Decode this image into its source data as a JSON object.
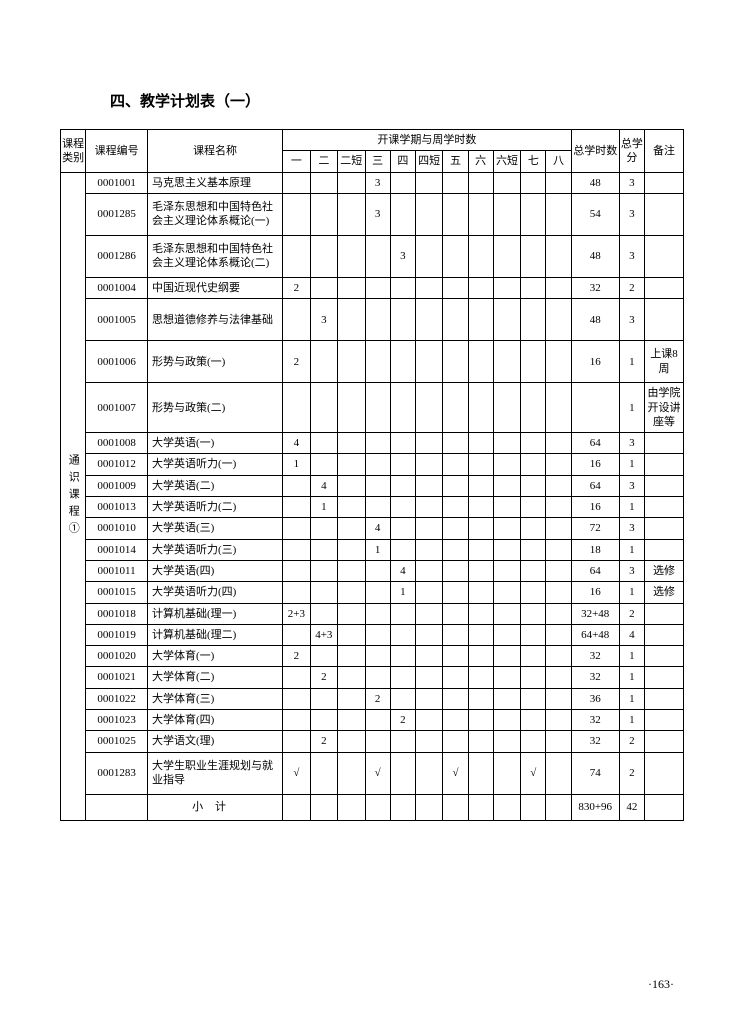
{
  "title": "四、教学计划表（一）",
  "page_number": "·163·",
  "headers": {
    "category": "课程类别",
    "code": "课程编号",
    "name": "课程名称",
    "semester_group": "开课学期与周学时数",
    "total_hours": "总学时数",
    "total_credits": "总学分",
    "remark": "备注",
    "sem1": "一",
    "sem2": "二",
    "sem2s": "二短",
    "sem3": "三",
    "sem4": "四",
    "sem4s": "四短",
    "sem5": "五",
    "sem6": "六",
    "sem6s": "六短",
    "sem7": "七",
    "sem8": "八"
  },
  "category_label": "通识课程①",
  "subtotal_label": "小计",
  "rows": [
    {
      "code": "0001001",
      "name": "马克思主义基本原理",
      "s": [
        "",
        "",
        "",
        "3",
        "",
        "",
        "",
        "",
        "",
        "",
        ""
      ],
      "hours": "48",
      "credits": "3",
      "remark": ""
    },
    {
      "code": "0001285",
      "name": "毛泽东思想和中国特色社会主义理论体系概论(一)",
      "s": [
        "",
        "",
        "",
        "3",
        "",
        "",
        "",
        "",
        "",
        "",
        ""
      ],
      "hours": "54",
      "credits": "3",
      "remark": ""
    },
    {
      "code": "0001286",
      "name": "毛泽东思想和中国特色社会主义理论体系概论(二)",
      "s": [
        "",
        "",
        "",
        "",
        "3",
        "",
        "",
        "",
        "",
        "",
        ""
      ],
      "hours": "48",
      "credits": "3",
      "remark": ""
    },
    {
      "code": "0001004",
      "name": "中国近现代史纲要",
      "s": [
        "2",
        "",
        "",
        "",
        "",
        "",
        "",
        "",
        "",
        "",
        ""
      ],
      "hours": "32",
      "credits": "2",
      "remark": ""
    },
    {
      "code": "0001005",
      "name": "思想道德修养与法律基础",
      "s": [
        "",
        "3",
        "",
        "",
        "",
        "",
        "",
        "",
        "",
        "",
        ""
      ],
      "hours": "48",
      "credits": "3",
      "remark": ""
    },
    {
      "code": "0001006",
      "name": "形势与政策(一)",
      "s": [
        "2",
        "",
        "",
        "",
        "",
        "",
        "",
        "",
        "",
        "",
        ""
      ],
      "hours": "16",
      "credits": "1",
      "remark": "上课8周"
    },
    {
      "code": "0001007",
      "name": "形势与政策(二)",
      "s": [
        "",
        "",
        "",
        "",
        "",
        "",
        "",
        "",
        "",
        "",
        ""
      ],
      "hours": "",
      "credits": "1",
      "remark": "由学院开设讲座等"
    },
    {
      "code": "0001008",
      "name": "大学英语(一)",
      "s": [
        "4",
        "",
        "",
        "",
        "",
        "",
        "",
        "",
        "",
        "",
        ""
      ],
      "hours": "64",
      "credits": "3",
      "remark": ""
    },
    {
      "code": "0001012",
      "name": "大学英语听力(一)",
      "s": [
        "1",
        "",
        "",
        "",
        "",
        "",
        "",
        "",
        "",
        "",
        ""
      ],
      "hours": "16",
      "credits": "1",
      "remark": ""
    },
    {
      "code": "0001009",
      "name": "大学英语(二)",
      "s": [
        "",
        "4",
        "",
        "",
        "",
        "",
        "",
        "",
        "",
        "",
        ""
      ],
      "hours": "64",
      "credits": "3",
      "remark": ""
    },
    {
      "code": "0001013",
      "name": "大学英语听力(二)",
      "s": [
        "",
        "1",
        "",
        "",
        "",
        "",
        "",
        "",
        "",
        "",
        ""
      ],
      "hours": "16",
      "credits": "1",
      "remark": ""
    },
    {
      "code": "0001010",
      "name": "大学英语(三)",
      "s": [
        "",
        "",
        "",
        "4",
        "",
        "",
        "",
        "",
        "",
        "",
        ""
      ],
      "hours": "72",
      "credits": "3",
      "remark": ""
    },
    {
      "code": "0001014",
      "name": "大学英语听力(三)",
      "s": [
        "",
        "",
        "",
        "1",
        "",
        "",
        "",
        "",
        "",
        "",
        ""
      ],
      "hours": "18",
      "credits": "1",
      "remark": ""
    },
    {
      "code": "0001011",
      "name": "大学英语(四)",
      "s": [
        "",
        "",
        "",
        "",
        "4",
        "",
        "",
        "",
        "",
        "",
        ""
      ],
      "hours": "64",
      "credits": "3",
      "remark": "选修"
    },
    {
      "code": "0001015",
      "name": "大学英语听力(四)",
      "s": [
        "",
        "",
        "",
        "",
        "1",
        "",
        "",
        "",
        "",
        "",
        ""
      ],
      "hours": "16",
      "credits": "1",
      "remark": "选修"
    },
    {
      "code": "0001018",
      "name": "计算机基础(理一)",
      "s": [
        "2+3",
        "",
        "",
        "",
        "",
        "",
        "",
        "",
        "",
        "",
        ""
      ],
      "hours": "32+48",
      "credits": "2",
      "remark": ""
    },
    {
      "code": "0001019",
      "name": "计算机基础(理二)",
      "s": [
        "",
        "4+3",
        "",
        "",
        "",
        "",
        "",
        "",
        "",
        "",
        ""
      ],
      "hours": "64+48",
      "credits": "4",
      "remark": ""
    },
    {
      "code": "0001020",
      "name": "大学体育(一)",
      "s": [
        "2",
        "",
        "",
        "",
        "",
        "",
        "",
        "",
        "",
        "",
        ""
      ],
      "hours": "32",
      "credits": "1",
      "remark": ""
    },
    {
      "code": "0001021",
      "name": "大学体育(二)",
      "s": [
        "",
        "2",
        "",
        "",
        "",
        "",
        "",
        "",
        "",
        "",
        ""
      ],
      "hours": "32",
      "credits": "1",
      "remark": ""
    },
    {
      "code": "0001022",
      "name": "大学体育(三)",
      "s": [
        "",
        "",
        "",
        "2",
        "",
        "",
        "",
        "",
        "",
        "",
        ""
      ],
      "hours": "36",
      "credits": "1",
      "remark": ""
    },
    {
      "code": "0001023",
      "name": "大学体育(四)",
      "s": [
        "",
        "",
        "",
        "",
        "2",
        "",
        "",
        "",
        "",
        "",
        ""
      ],
      "hours": "32",
      "credits": "1",
      "remark": ""
    },
    {
      "code": "0001025",
      "name": "大学语文(理)",
      "s": [
        "",
        "2",
        "",
        "",
        "",
        "",
        "",
        "",
        "",
        "",
        ""
      ],
      "hours": "32",
      "credits": "2",
      "remark": ""
    },
    {
      "code": "0001283",
      "name": "大学生职业生涯规划与就业指导",
      "s": [
        "√",
        "",
        "",
        "√",
        "",
        "",
        "√",
        "",
        "",
        "√",
        ""
      ],
      "hours": "74",
      "credits": "2",
      "remark": ""
    }
  ],
  "subtotal": {
    "hours": "830+96",
    "credits": "42"
  }
}
